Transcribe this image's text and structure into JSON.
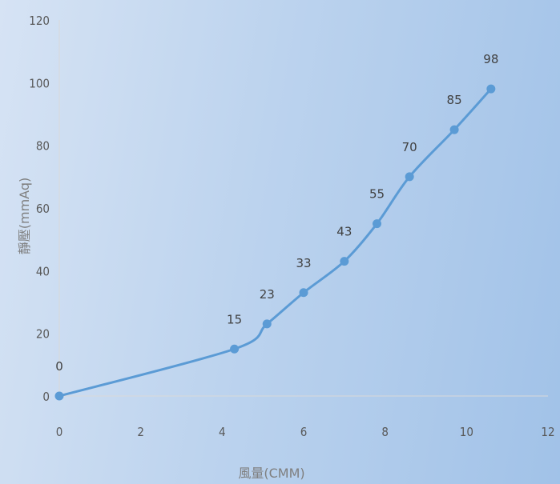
{
  "chart_data": {
    "type": "line",
    "title": "",
    "xlabel": "風量(CMM)",
    "ylabel": "靜壓(mmAq)",
    "xlim": [
      0,
      12
    ],
    "ylim": [
      0,
      120
    ],
    "x_ticks": [
      "0",
      "2",
      "4",
      "6",
      "8",
      "10",
      "12"
    ],
    "y_ticks": [
      "0",
      "20",
      "40",
      "60",
      "80",
      "100",
      "120"
    ],
    "grid": false,
    "legend": "none",
    "smooth": true,
    "series": [
      {
        "x": [
          0,
          4.3,
          5.1,
          6.0,
          7.0,
          7.8,
          8.6,
          9.7,
          10.6
        ],
        "y": [
          0,
          15,
          23,
          33,
          43,
          55,
          70,
          85,
          98
        ],
        "labels": [
          "0",
          "15",
          "23",
          "33",
          "43",
          "55",
          "70",
          "85",
          "98"
        ],
        "color": "#5b9bd5"
      }
    ]
  }
}
